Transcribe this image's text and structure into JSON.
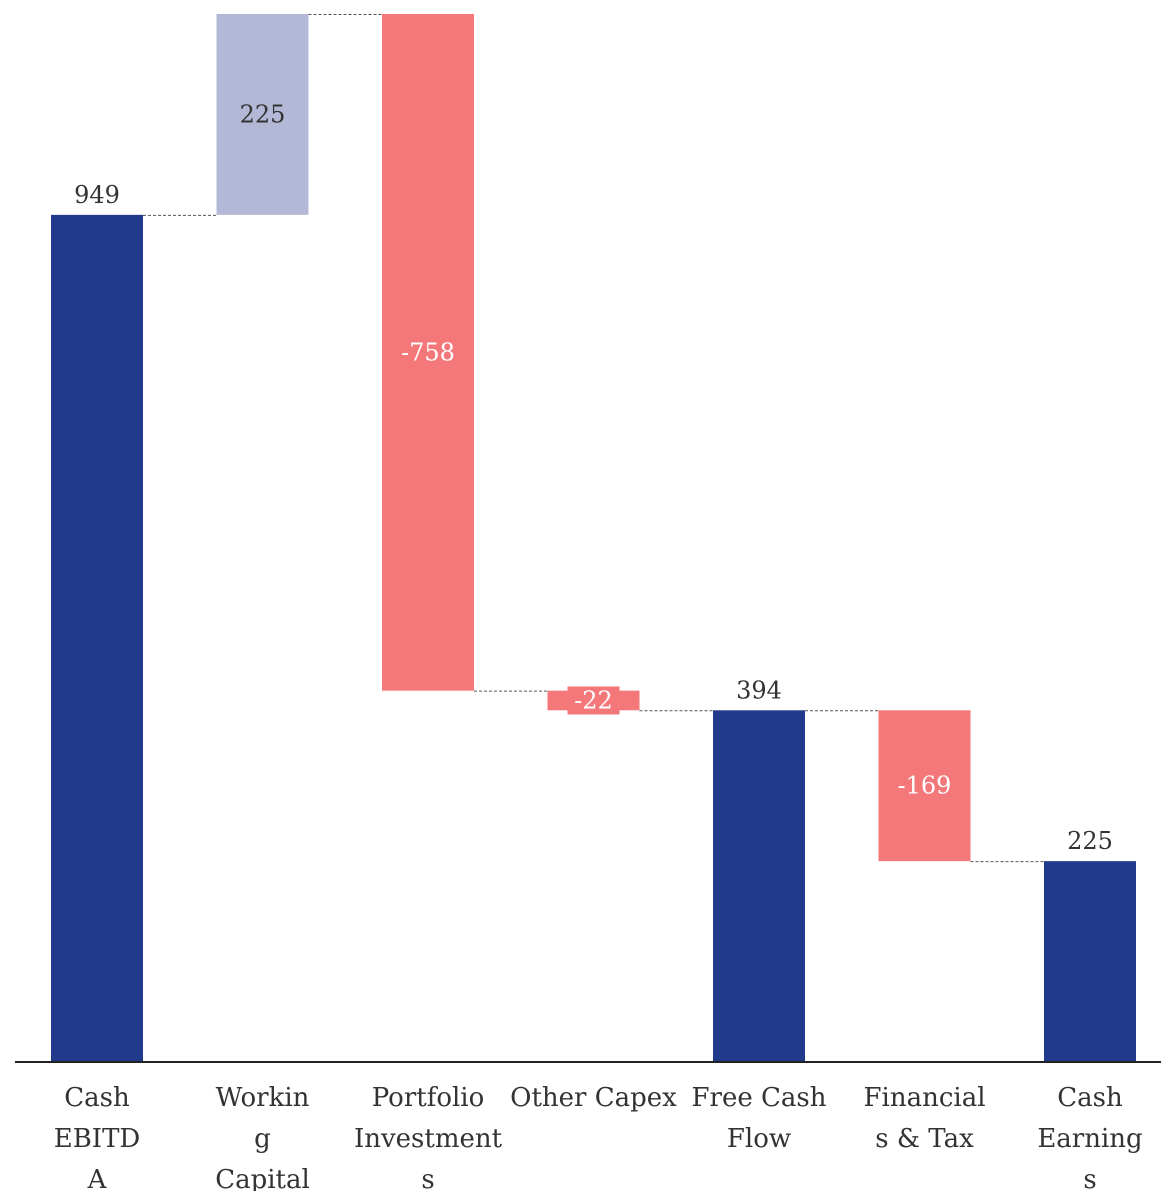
{
  "chart_data": {
    "type": "waterfall",
    "categories": [
      "Cash EBITDA",
      "Working Capital",
      "Portfolio Investments",
      "Other Capex",
      "Free Cash Flow",
      "Financials & Tax",
      "Cash Earnings"
    ],
    "category_label_lines": [
      [
        "Cash",
        "EBITD",
        "A"
      ],
      [
        "Workin",
        "g",
        "Capital"
      ],
      [
        "Portfolio",
        "Investment",
        "s"
      ],
      [
        "Other Capex"
      ],
      [
        "Free Cash",
        "Flow"
      ],
      [
        "Financial",
        "s & Tax"
      ],
      [
        "Cash",
        "Earning",
        "s"
      ]
    ],
    "values": [
      949,
      225,
      -758,
      -22,
      394,
      -169,
      225
    ],
    "value_labels": [
      "949",
      "225",
      "-758",
      "-22",
      "394",
      "-169",
      "225"
    ],
    "kinds": [
      "total",
      "increase",
      "decrease",
      "decrease",
      "total",
      "decrease",
      "total"
    ],
    "title": "",
    "xlabel": "",
    "ylabel": "",
    "ylim": [
      0,
      1174
    ],
    "grid": false,
    "colors": {
      "total": "#223a8c",
      "increase": "#b3b8d6",
      "decrease": "#f47779",
      "connector": "#555555",
      "axis": "#222222",
      "label_dark": "#333333",
      "label_light": "#ffffff"
    }
  }
}
